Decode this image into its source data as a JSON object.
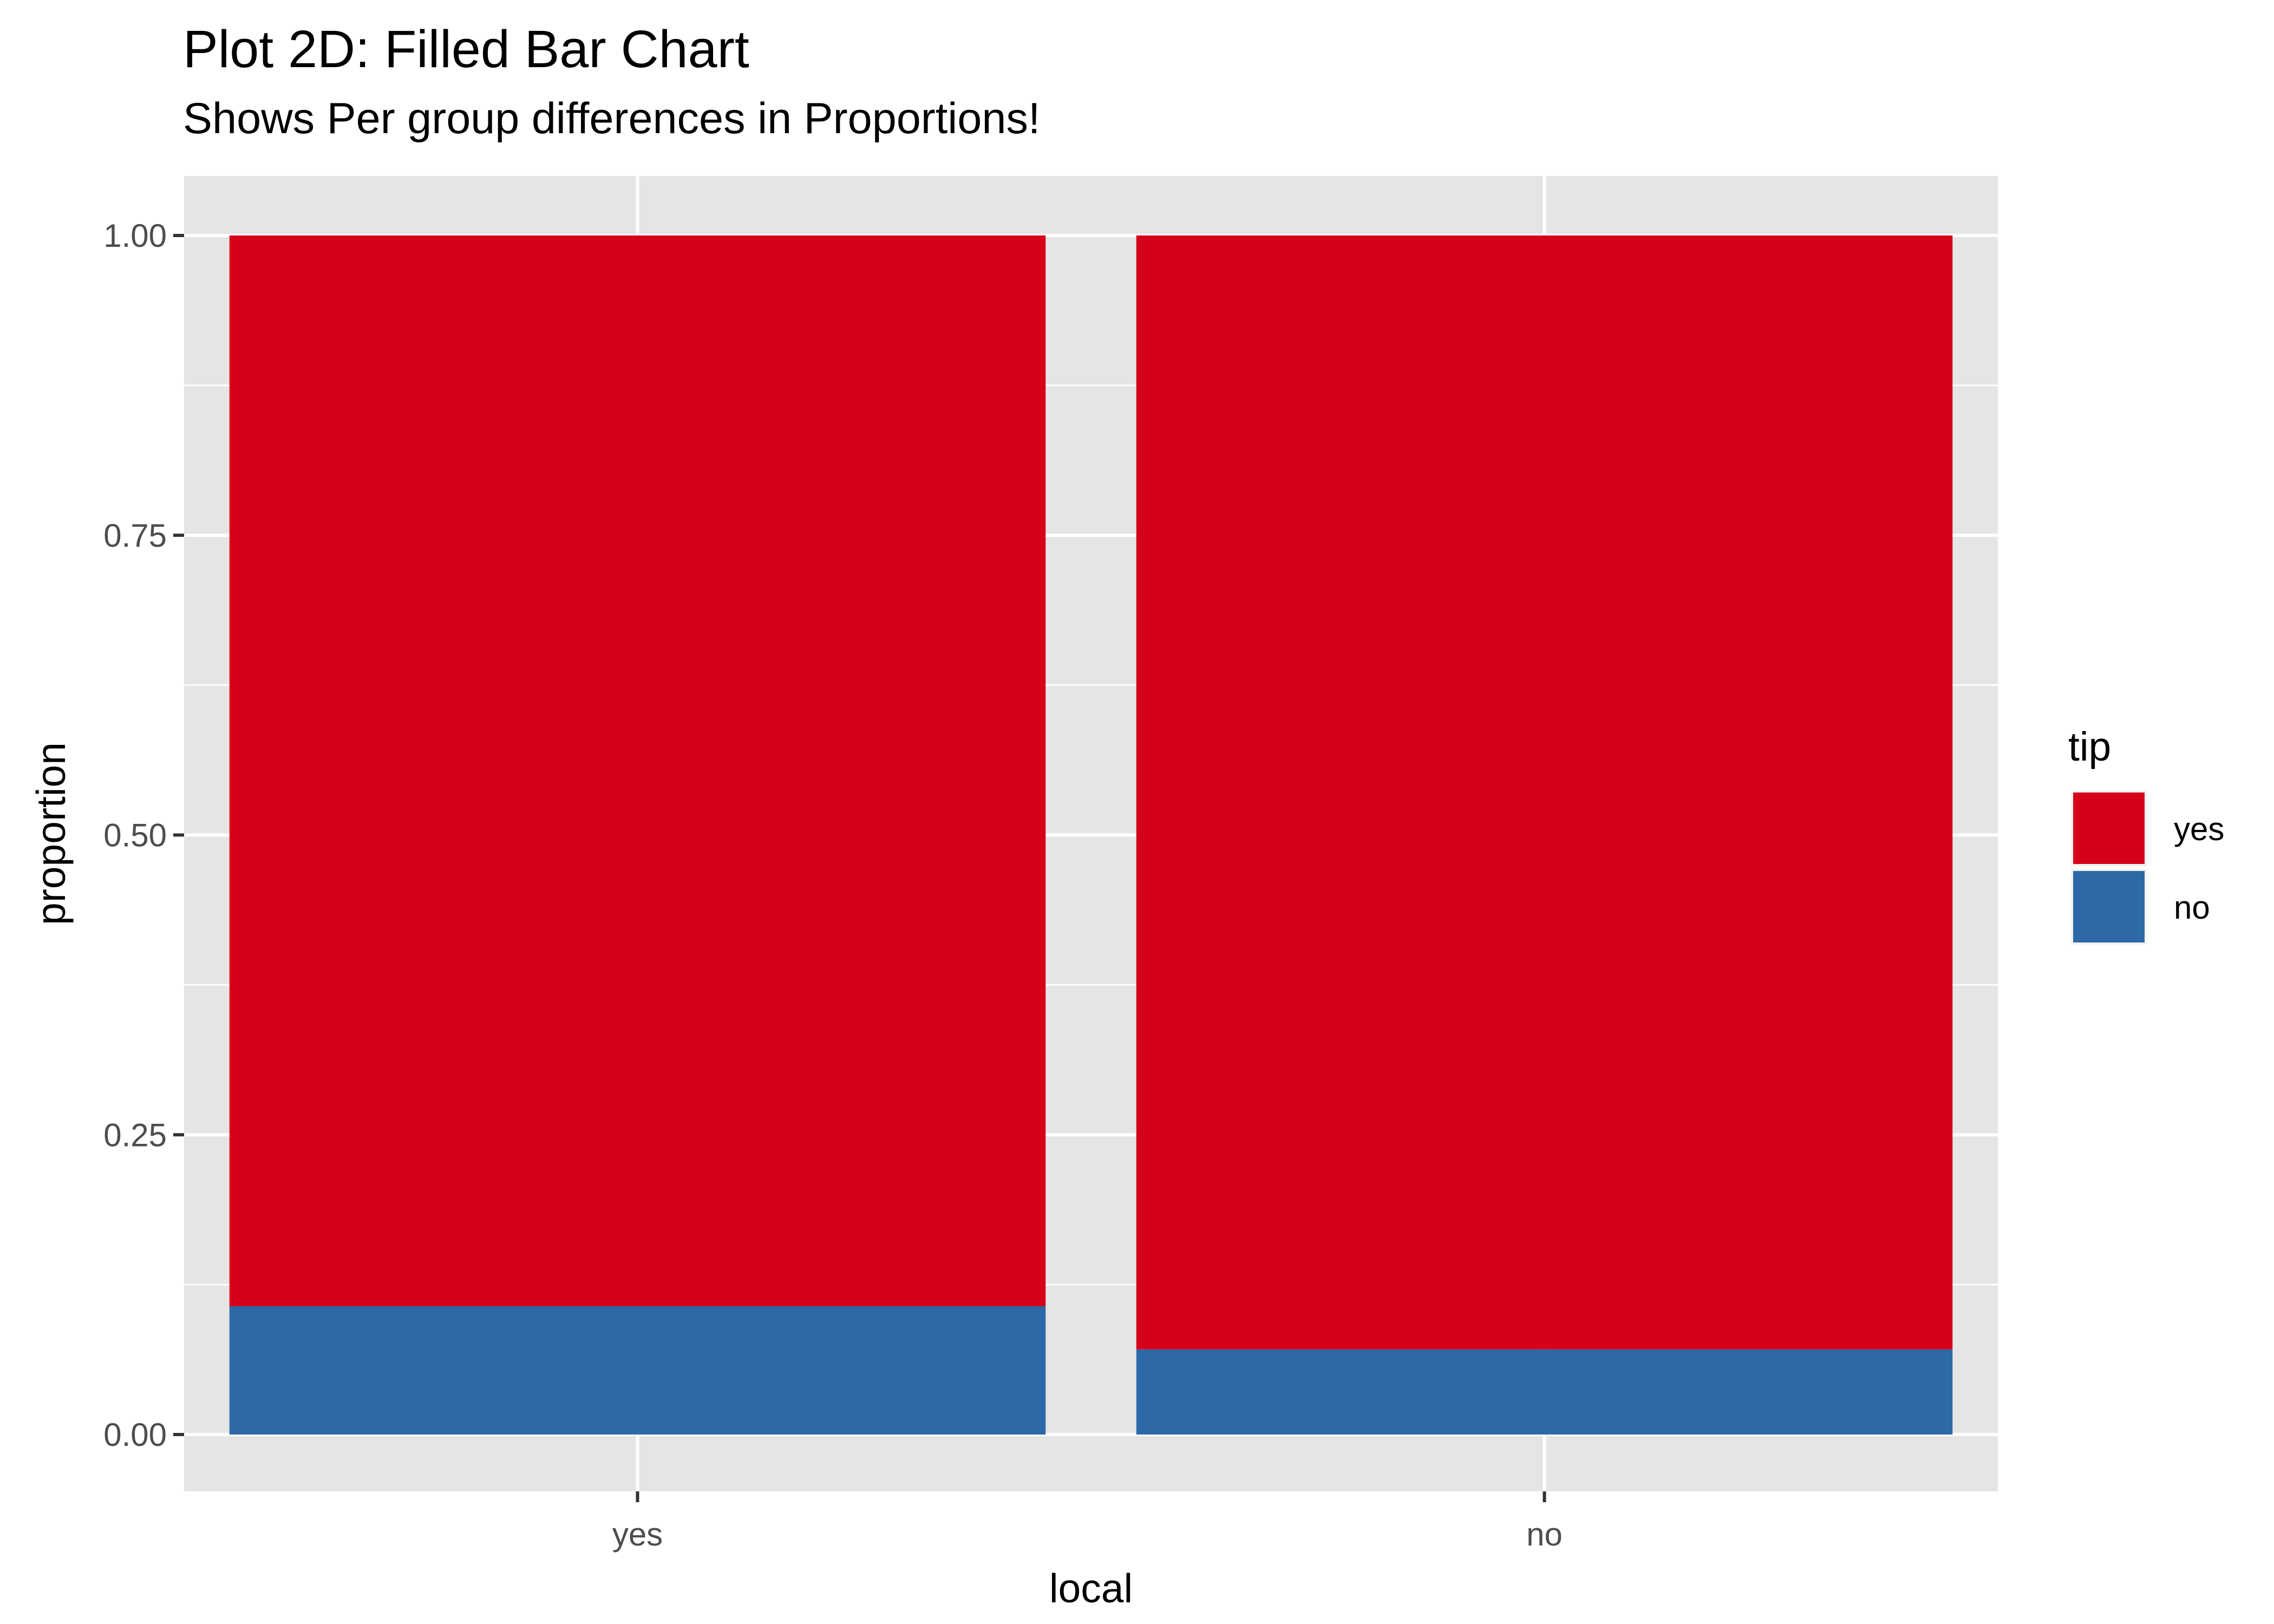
{
  "chart_data": {
    "type": "bar",
    "stacked": true,
    "position": "fill",
    "title": "Plot 2D: Filled Bar Chart",
    "subtitle": "Shows Per group differences in Proportions!",
    "xlabel": "local",
    "ylabel": "proportion",
    "categories": [
      "yes",
      "no"
    ],
    "series": [
      {
        "name": "no",
        "values": [
          0.107,
          0.071
        ],
        "color": "#2D69A6"
      },
      {
        "name": "yes",
        "values": [
          0.893,
          0.929
        ],
        "color": "#D7001A"
      }
    ],
    "ylim": [
      0,
      1
    ],
    "yticks": [
      0,
      0.25,
      0.5,
      0.75,
      1
    ],
    "ytick_labels": [
      "0.00",
      "0.25",
      "0.50",
      "0.75",
      "1.00"
    ],
    "legend": {
      "title": "tip",
      "placement": "right",
      "entries": [
        {
          "label": "yes",
          "color": "#D7001A"
        },
        {
          "label": "no",
          "color": "#2D69A6"
        }
      ]
    },
    "grid": true,
    "panel_background": "#E5E5E5",
    "grid_color": "#FFFFFF"
  }
}
